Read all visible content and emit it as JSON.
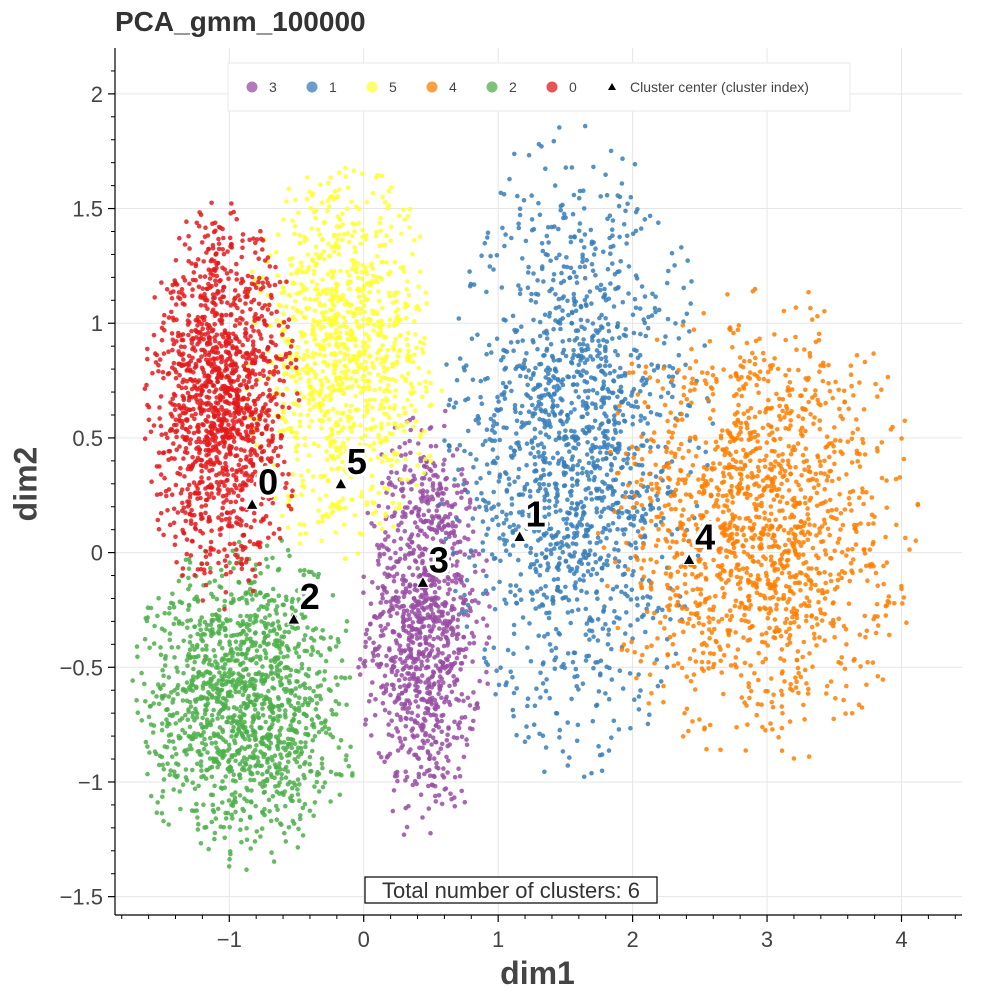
{
  "chart_data": {
    "type": "scatter",
    "title": "PCA_gmm_100000",
    "xlabel": "dim1",
    "ylabel": "dim2",
    "xlim": [
      -1.85,
      4.45
    ],
    "ylim": [
      -1.58,
      2.2
    ],
    "x_ticks": [
      -1,
      0,
      1,
      2,
      3,
      4
    ],
    "x_tick_labels": [
      "−1",
      "0",
      "1",
      "2",
      "3",
      "4"
    ],
    "y_ticks": [
      -1.5,
      -1,
      -0.5,
      0,
      0.5,
      1,
      1.5,
      2
    ],
    "y_tick_labels": [
      "−1.5",
      "−1",
      "−0.5",
      "0",
      "0.5",
      "1",
      "1.5",
      "2"
    ],
    "grid": true,
    "legend_position": "top",
    "legend": [
      {
        "label": "3",
        "color": "#984ea3"
      },
      {
        "label": "1",
        "color": "#377eb8"
      },
      {
        "label": "5",
        "color": "#ffff33"
      },
      {
        "label": "4",
        "color": "#ff7f00"
      },
      {
        "label": "2",
        "color": "#4daf4a"
      },
      {
        "label": "0",
        "color": "#e41a1c"
      },
      {
        "label": "Cluster center (cluster index)",
        "color": "#000000",
        "marker": "triangle"
      }
    ],
    "series": [
      {
        "name": "0",
        "color": "#e41a1c",
        "center": [
          -0.83,
          0.21
        ],
        "x_range": [
          -1.65,
          -0.45
        ],
        "y_range": [
          -0.25,
          1.55
        ]
      },
      {
        "name": "1",
        "color": "#377eb8",
        "center": [
          1.16,
          0.07
        ],
        "x_range": [
          0.55,
          2.6
        ],
        "y_range": [
          -1.0,
          1.9
        ]
      },
      {
        "name": "2",
        "color": "#4daf4a",
        "center": [
          -0.52,
          -0.29
        ],
        "x_range": [
          -1.75,
          0.0
        ],
        "y_range": [
          -1.4,
          0.1
        ]
      },
      {
        "name": "3",
        "color": "#984ea3",
        "center": [
          0.44,
          -0.13
        ],
        "x_range": [
          -0.05,
          0.95
        ],
        "y_range": [
          -1.3,
          0.7
        ]
      },
      {
        "name": "4",
        "color": "#ff7f00",
        "center": [
          2.42,
          -0.03
        ],
        "x_range": [
          1.7,
          4.15
        ],
        "y_range": [
          -0.95,
          1.2
        ]
      },
      {
        "name": "5",
        "color": "#ffff33",
        "center": [
          -0.17,
          0.3
        ],
        "x_range": [
          -0.9,
          0.6
        ],
        "y_range": [
          -0.05,
          1.75
        ]
      }
    ],
    "centers": [
      {
        "label": "0",
        "x": -0.83,
        "y": 0.21
      },
      {
        "label": "5",
        "x": -0.17,
        "y": 0.3
      },
      {
        "label": "2",
        "x": -0.52,
        "y": -0.29
      },
      {
        "label": "3",
        "x": 0.44,
        "y": -0.13
      },
      {
        "label": "1",
        "x": 1.16,
        "y": 0.07
      },
      {
        "label": "4",
        "x": 2.42,
        "y": -0.03
      }
    ],
    "annotation": "Total number of clusters: 6"
  }
}
